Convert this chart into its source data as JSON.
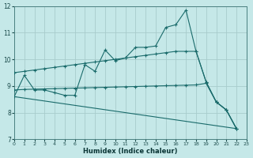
{
  "xlabel": "Humidex (Indice chaleur)",
  "bg_color": "#c5e8e8",
  "grid_color": "#a8cccc",
  "line_color": "#1a6b6b",
  "xlim": [
    0,
    23
  ],
  "ylim": [
    7,
    12
  ],
  "yticks": [
    7,
    8,
    9,
    10,
    11,
    12
  ],
  "xticks": [
    0,
    1,
    2,
    3,
    4,
    5,
    6,
    7,
    8,
    9,
    10,
    11,
    12,
    13,
    14,
    15,
    16,
    17,
    18,
    19,
    20,
    21,
    22,
    23
  ],
  "line1_x": [
    0,
    1,
    2,
    3,
    4,
    5,
    6,
    7,
    8,
    9,
    10,
    11,
    12,
    13,
    14,
    15,
    16,
    17,
    18,
    19,
    20,
    21,
    22
  ],
  "line1_y": [
    8.6,
    9.4,
    8.85,
    8.85,
    8.75,
    8.65,
    8.65,
    9.8,
    9.55,
    10.35,
    9.95,
    10.05,
    10.45,
    10.45,
    10.5,
    11.2,
    11.3,
    11.85,
    10.3,
    9.15,
    8.4,
    8.1,
    7.4
  ],
  "line2_x": [
    0,
    1,
    2,
    3,
    4,
    5,
    6,
    7,
    8,
    9,
    10,
    11,
    12,
    13,
    14,
    15,
    16,
    17,
    18,
    19,
    20,
    21,
    22
  ],
  "line2_y": [
    9.5,
    9.55,
    9.6,
    9.65,
    9.7,
    9.75,
    9.8,
    9.85,
    9.9,
    9.95,
    10.0,
    10.05,
    10.1,
    10.15,
    10.2,
    10.25,
    10.3,
    10.3,
    10.3,
    9.15,
    8.4,
    8.1,
    7.4
  ],
  "line3_x": [
    0,
    1,
    2,
    3,
    4,
    5,
    6,
    7,
    8,
    9,
    10,
    11,
    12,
    13,
    14,
    15,
    16,
    17,
    18,
    19,
    20,
    21,
    22
  ],
  "line3_y": [
    8.85,
    8.87,
    8.88,
    8.89,
    8.9,
    8.91,
    8.92,
    8.93,
    8.94,
    8.95,
    8.96,
    8.97,
    8.98,
    8.99,
    9.0,
    9.01,
    9.02,
    9.03,
    9.04,
    9.1,
    8.4,
    8.1,
    7.4
  ],
  "line4_x": [
    0,
    22
  ],
  "line4_y": [
    8.6,
    7.4
  ]
}
